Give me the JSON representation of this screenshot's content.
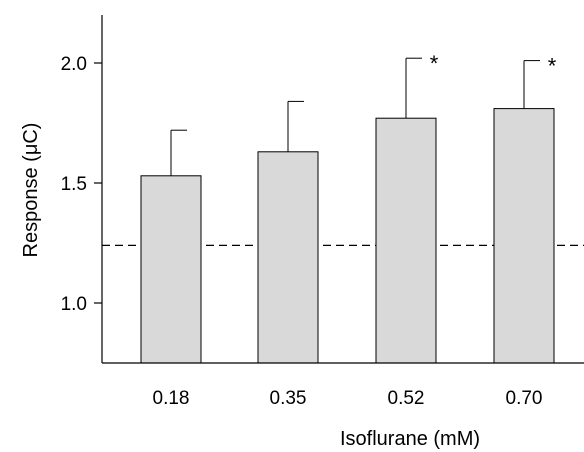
{
  "chart_data": {
    "type": "bar",
    "title": "",
    "xlabel": "Isoflurane (mM)",
    "ylabel": "Response (μC)",
    "categories": [
      "0.18",
      "0.35",
      "0.52",
      "0.70"
    ],
    "values": [
      1.53,
      1.63,
      1.77,
      1.81
    ],
    "error_upper": [
      1.72,
      1.84,
      2.02,
      2.01
    ],
    "significance": [
      "",
      "",
      "*",
      "*"
    ],
    "reference_line": 1.24,
    "ylim": [
      0.75,
      2.2
    ],
    "yticks": [
      1.0,
      1.5,
      2.0
    ],
    "ytick_labels": [
      "1.0",
      "1.5",
      "2.0"
    ],
    "grid": false,
    "colors": {
      "bar_fill": "#d9d9d9",
      "bar_edge": "#000000"
    }
  }
}
